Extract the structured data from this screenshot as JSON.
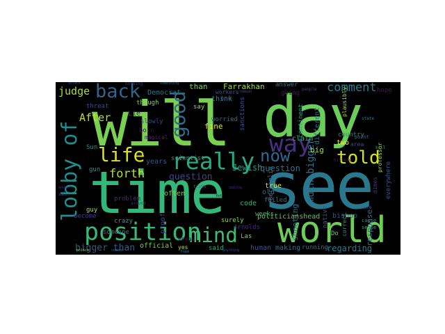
{
  "wordcloud": {
    "background": "#000000",
    "words": [
      {
        "text": "will",
        "color": "#7ad151"
      },
      {
        "text": "day",
        "color": "#6ccd5a"
      },
      {
        "text": "see",
        "color": "#2a788e"
      },
      {
        "text": "time",
        "color": "#35b779"
      },
      {
        "text": "world",
        "color": "#6ece58"
      },
      {
        "text": "position",
        "color": "#38b977"
      },
      {
        "text": "really",
        "color": "#25ab82"
      },
      {
        "text": "mind",
        "color": "#3dbc74"
      },
      {
        "text": "lobby of",
        "color": "#228d8d"
      },
      {
        "text": "life",
        "color": "#dde318"
      },
      {
        "text": "way",
        "color": "#46327e"
      },
      {
        "text": "told",
        "color": "#d8e219"
      },
      {
        "text": "now",
        "color": "#31688e"
      },
      {
        "text": "good",
        "color": "#2f6c8e"
      },
      {
        "text": "back",
        "color": "#33638d"
      },
      {
        "text": "much bigger",
        "color": "#2c728e"
      },
      {
        "text": "comment",
        "color": "#287c8e"
      },
      {
        "text": "judge",
        "color": "#addc30"
      },
      {
        "text": "After",
        "color": "#c2df23"
      },
      {
        "text": "forth",
        "color": "#b5de2b"
      },
      {
        "text": "question",
        "color": "#3f4788"
      },
      {
        "text": "Jewish",
        "color": "#1fa187"
      },
      {
        "text": "question",
        "color": "#2d718e"
      },
      {
        "text": "bigger than",
        "color": "#375a8c"
      },
      {
        "text": "response",
        "color": "#31688e"
      },
      {
        "text": "shooting",
        "color": "#2d708e"
      },
      {
        "text": "politicianshead",
        "color": "#5ec962"
      },
      {
        "text": "regarding",
        "color": "#297b8e"
      },
      {
        "text": "than",
        "color": "#7ad151"
      },
      {
        "text": "Farrakhan",
        "color": "#a2da37"
      },
      {
        "text": "Democrat",
        "color": "#2a788e"
      },
      {
        "text": "official",
        "color": "#7ad151"
      },
      {
        "text": "human",
        "color": "#3b528b"
      },
      {
        "text": "making",
        "color": "#2c728e"
      },
      {
        "text": "bishop",
        "color": "#3a538b"
      },
      {
        "text": "sanctions",
        "color": "#3b528b"
      },
      {
        "text": "Bergoglio",
        "color": "#2e6e8e"
      },
      {
        "text": "someone",
        "color": "#2f6b8e"
      },
      {
        "text": "crazy",
        "color": "#22a884"
      },
      {
        "text": "gun",
        "color": "#21918c"
      },
      {
        "text": "guy",
        "color": "#a8db34"
      },
      {
        "text": "problem",
        "color": "#482475"
      },
      {
        "text": "become",
        "color": "#443983"
      },
      {
        "text": "threat",
        "color": "#3e4c8a"
      },
      {
        "text": "Lie",
        "color": "#482173"
      },
      {
        "text": "born",
        "color": "#440154"
      },
      {
        "text": "fine",
        "color": "#e5e419"
      },
      {
        "text": "think",
        "color": "#26828e"
      },
      {
        "text": "claim",
        "color": "#35b779"
      },
      {
        "text": "true",
        "color": "#e7e419"
      },
      {
        "text": "old",
        "color": "#2f6b8e"
      },
      {
        "text": "big",
        "color": "#a5db36"
      },
      {
        "text": "two",
        "color": "#fde725"
      },
      {
        "text": "country",
        "color": "#24878e"
      },
      {
        "text": "answer",
        "color": "#2a768e"
      },
      {
        "text": "going",
        "color": "#48186a"
      },
      {
        "text": "say",
        "color": "#9bd93c"
      },
      {
        "text": "one",
        "color": "#3b528b"
      },
      {
        "text": "code",
        "color": "#31b57b"
      },
      {
        "text": "weeks",
        "color": "#3bbb75"
      },
      {
        "text": "said",
        "color": "#26ad81"
      },
      {
        "text": "Do",
        "color": "#5ec962"
      },
      {
        "text": "running",
        "color": "#2e6f8e"
      },
      {
        "text": "failed",
        "color": "#2c728e"
      },
      {
        "text": "years",
        "color": "#365c8d"
      },
      {
        "text": "often",
        "color": "#77d153"
      },
      {
        "text": "scientist",
        "color": "#1f9a8a"
      },
      {
        "text": "proof",
        "color": "#414487"
      },
      {
        "text": "Sun",
        "color": "#20928c"
      },
      {
        "text": "though",
        "color": "#7ad151"
      },
      {
        "text": "slowly",
        "color": "#404688"
      },
      {
        "text": "different",
        "color": "#2a768e"
      },
      {
        "text": "native",
        "color": "#3b528b"
      },
      {
        "text": "continent",
        "color": "#1e9c89"
      },
      {
        "text": "worried",
        "color": "#306a8e"
      },
      {
        "text": "workers",
        "color": "#39568c"
      },
      {
        "text": "Arnolds",
        "color": "#472d7b"
      },
      {
        "text": "surely",
        "color": "#8fd744"
      },
      {
        "text": "everywhere",
        "color": "#38598c"
      },
      {
        "text": "Las",
        "color": "#6ece58"
      },
      {
        "text": "yes",
        "color": "#b8de29"
      },
      {
        "text": "dimes",
        "color": "#453581"
      },
      {
        "text": "area",
        "color": "#3d4d8a"
      },
      {
        "text": "point",
        "color": "#355f8d"
      },
      {
        "text": "people",
        "color": "#414487"
      },
      {
        "text": "plausibly",
        "color": "#addc30"
      },
      {
        "text": "correct",
        "color": "#1f998a"
      },
      {
        "text": "professor",
        "color": "#a0da39"
      },
      {
        "text": "cause",
        "color": "#21918c"
      },
      {
        "text": "sense",
        "color": "#26ad81"
      },
      {
        "text": "hope",
        "color": "#471365"
      },
      {
        "text": "magical",
        "color": "#482475"
      },
      {
        "text": "Vegas",
        "color": "#440154"
      },
      {
        "text": "attack",
        "color": "#3e4989"
      },
      {
        "text": "nothing",
        "color": "#46327e"
      },
      {
        "text": "something",
        "color": "#2c738e"
      },
      {
        "text": "reason",
        "color": "#38598c"
      },
      {
        "text": "history",
        "color": "#481f70"
      },
      {
        "text": "police",
        "color": "#6ccd5a"
      },
      {
        "text": "common",
        "color": "#2e6f8e"
      },
      {
        "text": "anything",
        "color": "#3e4a89"
      },
      {
        "text": "around",
        "color": "#472f7d"
      },
      {
        "text": "making",
        "color": "#482878"
      },
      {
        "text": "truth",
        "color": "#2c728e"
      },
      {
        "text": "state",
        "color": "#25838e"
      },
      {
        "text": "known",
        "color": "#46307e"
      },
      {
        "text": "care",
        "color": "#33638d"
      },
      {
        "text": "kill",
        "color": "#1fa088"
      },
      {
        "text": "Yet",
        "color": "#440154"
      },
      {
        "text": "idea",
        "color": "#3e4a89"
      },
      {
        "text": "Pope",
        "color": "#24878e"
      },
      {
        "text": "fact",
        "color": "#482878"
      }
    ]
  }
}
